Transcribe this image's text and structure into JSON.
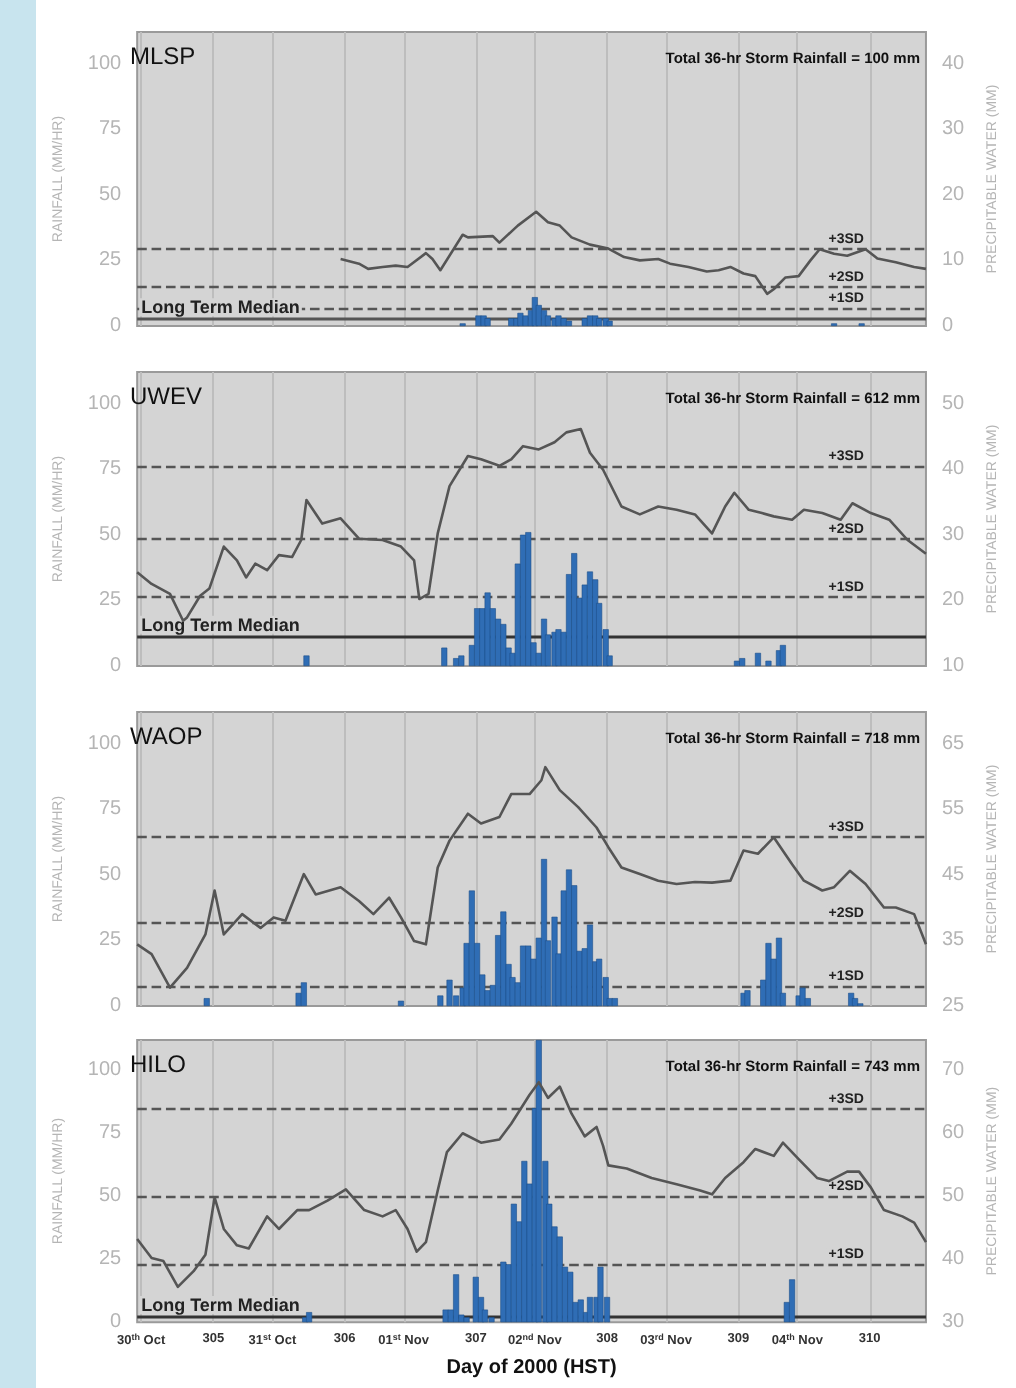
{
  "chart_data": [
    {
      "type": "bar",
      "title": "MLSP",
      "annotations": [
        "Total 36-hr Storm Rainfall = 100 mm"
      ],
      "ylabel": "RAINFALL (MM/HR)",
      "y2label": "PRECIPITABLE WATER (MM)",
      "xlim": [
        304.42,
        310.43
      ],
      "xticks": [
        304.45,
        305,
        305.45,
        306,
        306.45,
        307,
        307.45,
        308,
        308.45,
        309,
        309.45,
        310
      ],
      "ylim": [
        0,
        112
      ],
      "yticks": [
        0,
        25,
        50,
        75,
        100
      ],
      "y2lim": [
        0,
        44.8
      ],
      "y2ticks": [
        0,
        10,
        20,
        30,
        40
      ],
      "grid": "x",
      "tick_labels": "y",
      "series": [
        {
          "color": "#2f6db5",
          "x": [
            306.9,
            307.02,
            307.06,
            307.09,
            307.27,
            307.31,
            307.34,
            307.38,
            307.42,
            307.45,
            307.48,
            307.52,
            307.55,
            307.6,
            307.63,
            307.67,
            307.71,
            307.83,
            307.87,
            307.91,
            307.94,
            307.99,
            308.02,
            309.73,
            309.94
          ],
          "values": [
            1,
            4,
            4,
            3,
            3,
            3,
            5,
            4,
            6,
            11,
            8,
            6,
            4,
            3,
            4,
            3,
            2,
            3,
            4,
            4,
            3,
            3,
            2,
            1,
            1
          ]
        },
        {
          "type": "line",
          "axis": "y2",
          "color": "#555555",
          "x": [
            305.97,
            306.11,
            306.18,
            306.29,
            306.39,
            306.48,
            306.62,
            306.67,
            306.73,
            306.9,
            306.94,
            307.13,
            307.18,
            307.32,
            307.46,
            307.55,
            307.64,
            307.73,
            307.87,
            308.01,
            308.13,
            308.25,
            308.39,
            308.48,
            308.62,
            308.76,
            308.85,
            308.94,
            309.04,
            309.13,
            309.22,
            309.27,
            309.36,
            309.46,
            309.55,
            309.62,
            309.73,
            309.83,
            309.97,
            310.06,
            310.2,
            310.34,
            310.43
          ],
          "values": [
            10.2,
            9.5,
            8.7,
            9.0,
            9.2,
            9.0,
            11.1,
            10.2,
            8.5,
            13.9,
            13.5,
            13.7,
            12.7,
            15.3,
            17.4,
            15.8,
            15.3,
            13.5,
            12.4,
            11.8,
            10.5,
            10.0,
            10.2,
            9.5,
            9.0,
            8.3,
            8.5,
            9.0,
            8.0,
            7.6,
            4.9,
            5.6,
            7.4,
            7.6,
            10.0,
            11.7,
            11.0,
            10.7,
            11.7,
            10.3,
            9.7,
            9.0,
            8.7
          ]
        }
      ],
      "ref_lines": [
        {
          "axis": "y2",
          "value": 11.8,
          "label": "+3SD",
          "color": "#555555",
          "line_style": "dashed"
        },
        {
          "axis": "y2",
          "value": 5.9,
          "label": "+2SD",
          "color": "#555555",
          "line_style": "dashed"
        },
        {
          "axis": "y2",
          "value": 2.8,
          "label": "+1SD",
          "color": "#555555",
          "line_style": "dashed"
        },
        {
          "axis": "y2",
          "value": 1.2,
          "label": "Long Term Median",
          "color": "#555555",
          "line_style": "solid"
        }
      ]
    },
    {
      "type": "bar",
      "title": "UWEV",
      "annotations": [
        "Total 36-hr Storm Rainfall = 612 mm"
      ],
      "ylabel": "RAINFALL (MM/HR)",
      "y2label": "PRECIPITABLE WATER (MM)",
      "xlim": [
        304.42,
        310.43
      ],
      "xticks": [
        304.45,
        305,
        305.45,
        306,
        306.45,
        307,
        307.45,
        308,
        308.45,
        309,
        309.45,
        310
      ],
      "ylim": [
        0,
        112
      ],
      "yticks": [
        0,
        25,
        50,
        75,
        100
      ],
      "y2lim": [
        10,
        54.8
      ],
      "y2ticks": [
        10,
        20,
        30,
        40,
        50
      ],
      "grid": "x",
      "tick_labels": "y",
      "series": [
        {
          "color": "#2f6db5",
          "x": [
            305.71,
            306.76,
            306.85,
            306.89,
            306.97,
            307.01,
            307.05,
            307.09,
            307.13,
            307.17,
            307.21,
            307.25,
            307.28,
            307.32,
            307.36,
            307.4,
            307.44,
            307.48,
            307.52,
            307.55,
            307.6,
            307.63,
            307.67,
            307.71,
            307.75,
            307.79,
            307.83,
            307.87,
            307.91,
            307.94,
            307.99,
            308.02,
            308.99,
            309.03,
            309.15,
            309.23,
            309.31,
            309.34
          ],
          "values": [
            4,
            7,
            3,
            4,
            8,
            22,
            22,
            28,
            22,
            18,
            16,
            7,
            5,
            39,
            50,
            51,
            9,
            5,
            18,
            12,
            13,
            14,
            13,
            35,
            43,
            26,
            31,
            36,
            33,
            24,
            14,
            4,
            2,
            3,
            5,
            2,
            6,
            8
          ]
        },
        {
          "type": "line",
          "axis": "y2",
          "color": "#555555",
          "x": [
            304.42,
            304.53,
            304.67,
            304.77,
            304.8,
            304.9,
            304.97,
            305.08,
            305.18,
            305.25,
            305.32,
            305.41,
            305.5,
            305.6,
            305.67,
            305.71,
            305.83,
            305.97,
            306.11,
            306.29,
            306.43,
            306.53,
            306.57,
            306.64,
            306.71,
            306.8,
            306.94,
            307.04,
            307.18,
            307.27,
            307.36,
            307.48,
            307.6,
            307.69,
            307.8,
            307.87,
            307.97,
            308.11,
            308.25,
            308.39,
            308.53,
            308.67,
            308.8,
            308.9,
            308.97,
            309.08,
            309.18,
            309.27,
            309.41,
            309.5,
            309.64,
            309.78,
            309.87,
            310.01,
            310.15,
            310.29,
            310.43
          ],
          "values": [
            24.3,
            22.5,
            21.0,
            16.9,
            17.4,
            20.7,
            21.8,
            28.2,
            26.1,
            23.5,
            25.6,
            24.6,
            26.9,
            26.6,
            29.2,
            35.3,
            31.7,
            32.5,
            29.4,
            29.2,
            28.2,
            26.1,
            20.2,
            21.0,
            30.2,
            37.4,
            42.0,
            41.5,
            40.5,
            41.5,
            43.5,
            43.0,
            44.1,
            45.6,
            46.1,
            42.5,
            39.9,
            34.3,
            33.1,
            34.3,
            33.8,
            33.1,
            30.2,
            34.3,
            36.4,
            33.8,
            33.3,
            32.8,
            32.3,
            33.8,
            33.3,
            32.3,
            34.8,
            33.3,
            32.3,
            29.2,
            27.1
          ]
        }
      ],
      "ref_lines": [
        {
          "axis": "y2",
          "value": 40.5,
          "label": "+3SD",
          "color": "#555555",
          "line_style": "dashed"
        },
        {
          "axis": "y2",
          "value": 29.4,
          "label": "+2SD",
          "color": "#555555",
          "line_style": "dashed"
        },
        {
          "axis": "y2",
          "value": 20.5,
          "label": "+1SD",
          "color": "#555555",
          "line_style": "dashed"
        },
        {
          "axis": "y2",
          "value": 14.6,
          "label": "Long Term Median",
          "color": "#333333",
          "line_style": "solid"
        }
      ]
    },
    {
      "type": "bar",
      "title": "WAOP",
      "annotations": [
        "Total 36-hr Storm Rainfall = 718 mm"
      ],
      "ylabel": "RAINFALL (MM/HR)",
      "y2label": "PRECIPITABLE WATER (MM)",
      "xlim": [
        304.42,
        310.43
      ],
      "xticks": [
        304.45,
        305,
        305.45,
        306,
        306.45,
        307,
        307.45,
        308,
        308.45,
        309,
        309.45,
        310
      ],
      "ylim": [
        0,
        112
      ],
      "yticks": [
        0,
        25,
        50,
        75,
        100
      ],
      "y2lim": [
        25,
        69.8
      ],
      "y2ticks": [
        25,
        35,
        45,
        55,
        65
      ],
      "grid": "x",
      "tick_labels": "y",
      "series": [
        {
          "color": "#2f6db5",
          "x": [
            304.95,
            305.65,
            305.69,
            306.43,
            306.73,
            306.8,
            306.85,
            306.9,
            306.93,
            306.97,
            307.01,
            307.05,
            307.09,
            307.13,
            307.17,
            307.21,
            307.25,
            307.28,
            307.32,
            307.36,
            307.4,
            307.44,
            307.48,
            307.52,
            307.55,
            307.6,
            307.63,
            307.67,
            307.71,
            307.75,
            307.79,
            307.83,
            307.87,
            307.91,
            307.94,
            307.99,
            308.02,
            308.06,
            309.04,
            309.07,
            309.19,
            309.23,
            309.27,
            309.31,
            309.34,
            309.46,
            309.49,
            309.53,
            309.86,
            309.89,
            309.93
          ],
          "values": [
            3,
            5,
            9,
            2,
            4,
            10,
            4,
            7,
            24,
            44,
            24,
            12,
            6,
            8,
            27,
            36,
            16,
            11,
            9,
            23,
            23,
            18,
            26,
            56,
            25,
            34,
            20,
            44,
            52,
            46,
            21,
            22,
            31,
            17,
            18,
            11,
            3,
            3,
            5,
            6,
            10,
            24,
            18,
            26,
            5,
            4,
            7,
            3,
            5,
            3,
            1
          ]
        },
        {
          "type": "line",
          "axis": "y2",
          "color": "#555555",
          "x": [
            304.42,
            304.53,
            304.67,
            304.8,
            304.94,
            305.01,
            305.08,
            305.22,
            305.36,
            305.46,
            305.55,
            305.69,
            305.78,
            305.97,
            306.11,
            306.22,
            306.34,
            306.43,
            306.53,
            306.62,
            306.71,
            306.8,
            306.94,
            307.04,
            307.18,
            307.27,
            307.41,
            307.5,
            307.53,
            307.64,
            307.78,
            307.92,
            308.01,
            308.11,
            308.25,
            308.39,
            308.53,
            308.67,
            308.8,
            308.94,
            309.04,
            309.15,
            309.27,
            309.41,
            309.5,
            309.64,
            309.73,
            309.85,
            309.97,
            310.11,
            310.2,
            310.34,
            310.43
          ],
          "values": [
            34.4,
            32.9,
            27.8,
            30.8,
            35.9,
            42.6,
            35.9,
            39.0,
            36.9,
            38.5,
            38.0,
            45.1,
            42.0,
            43.1,
            41.0,
            39.0,
            41.5,
            38.5,
            34.9,
            34.4,
            46.1,
            50.2,
            54.3,
            52.8,
            53.8,
            57.3,
            57.3,
            59.4,
            61.4,
            57.9,
            55.3,
            52.2,
            49.2,
            46.1,
            45.1,
            44.1,
            43.6,
            43.9,
            43.8,
            44.1,
            48.7,
            48.2,
            50.7,
            46.6,
            44.1,
            42.6,
            43.1,
            45.6,
            43.6,
            40.0,
            40.0,
            39.0,
            34.4
          ]
        }
      ],
      "ref_lines": [
        {
          "axis": "y2",
          "value": 50.7,
          "label": "+3SD",
          "color": "#555555",
          "line_style": "dashed"
        },
        {
          "axis": "y2",
          "value": 37.6,
          "label": "+2SD",
          "color": "#555555",
          "line_style": "dashed"
        },
        {
          "axis": "y2",
          "value": 28,
          "label": "+1SD",
          "color": "#555555",
          "line_style": "dashed"
        }
      ]
    },
    {
      "type": "bar",
      "title": "HILO",
      "annotations": [
        "Total 36-hr Storm Rainfall = 743 mm"
      ],
      "xlabel": "Day of 2000 (HST)",
      "ylabel": "RAINFALL (MM/HR)",
      "y2label": "PRECIPITABLE WATER (MM)",
      "xlim": [
        304.42,
        310.43
      ],
      "xticks": [
        {
          "value": 304.45,
          "label": "30$^{th}$ Oct"
        },
        305,
        {
          "value": 305.45,
          "label": "31$^{st}$ Oct"
        },
        306,
        {
          "value": 306.45,
          "label": "01$^{st}$ Nov"
        },
        307,
        {
          "value": 307.45,
          "label": "02$^{nd}$ Nov"
        },
        308,
        {
          "value": 308.45,
          "label": "03$^{rd}$ Nov"
        },
        309,
        {
          "value": 309.45,
          "label": "04$^{th}$ Nov"
        },
        310
      ],
      "ylim": [
        0,
        112
      ],
      "yticks": [
        0,
        25,
        50,
        75,
        100
      ],
      "y2lim": [
        30,
        74.8
      ],
      "y2ticks": [
        30,
        40,
        50,
        60,
        70
      ],
      "grid": "x",
      "series": [
        {
          "color": "#2f6db5",
          "x": [
            305.7,
            305.73,
            306.77,
            306.81,
            306.85,
            306.89,
            306.93,
            307.0,
            307.04,
            307.07,
            307.12,
            307.21,
            307.25,
            307.29,
            307.33,
            307.37,
            307.41,
            307.45,
            307.48,
            307.53,
            307.56,
            307.6,
            307.64,
            307.68,
            307.72,
            307.76,
            307.8,
            307.84,
            307.87,
            307.92,
            307.95,
            308.0,
            309.37,
            309.41
          ],
          "values": [
            2,
            4,
            5,
            5,
            19,
            3,
            2,
            18,
            10,
            5,
            2,
            24,
            23,
            47,
            40,
            64,
            55,
            85,
            112,
            64,
            47,
            38,
            34,
            22,
            20,
            8,
            9,
            4,
            10,
            10,
            22,
            10,
            8,
            17
          ]
        },
        {
          "type": "line",
          "axis": "y2",
          "color": "#555555",
          "x": [
            304.42,
            304.53,
            304.62,
            304.73,
            304.85,
            304.94,
            305.01,
            305.08,
            305.18,
            305.27,
            305.41,
            305.5,
            305.64,
            305.73,
            305.87,
            306.01,
            306.15,
            306.29,
            306.39,
            306.48,
            306.55,
            306.62,
            306.71,
            306.78,
            306.9,
            307.04,
            307.18,
            307.27,
            307.41,
            307.48,
            307.55,
            307.64,
            307.73,
            307.83,
            307.92,
            307.97,
            308.01,
            308.15,
            308.34,
            308.53,
            308.71,
            308.8,
            308.9,
            309.04,
            309.13,
            309.27,
            309.34,
            309.46,
            309.6,
            309.69,
            309.83,
            309.92,
            310.01,
            310.11,
            310.25,
            310.34,
            310.43
          ],
          "values": [
            43.2,
            40.2,
            39.7,
            35.6,
            38.1,
            40.7,
            49.8,
            44.8,
            42.2,
            41.7,
            46.8,
            44.8,
            47.8,
            47.8,
            49.3,
            51.1,
            47.8,
            46.8,
            47.8,
            44.8,
            41.2,
            42.7,
            50.9,
            57.0,
            60.0,
            58.5,
            59.0,
            61.5,
            66.1,
            68.1,
            65.6,
            67.4,
            63.1,
            59.5,
            61.0,
            58.0,
            54.9,
            54.4,
            52.9,
            51.9,
            50.9,
            50.3,
            52.9,
            55.4,
            57.5,
            56.4,
            58.5,
            55.9,
            52.9,
            52.4,
            53.9,
            53.9,
            51.4,
            47.8,
            46.8,
            45.8,
            42.7
          ]
        }
      ],
      "ref_lines": [
        {
          "axis": "y2",
          "value": 63.9,
          "label": "+3SD",
          "color": "#555555",
          "line_style": "dashed"
        },
        {
          "axis": "y2",
          "value": 50,
          "label": "+2SD",
          "color": "#555555",
          "line_style": "dashed"
        },
        {
          "axis": "y2",
          "value": 39.2,
          "label": "+1SD",
          "color": "#555555",
          "line_style": "dashed"
        },
        {
          "axis": "y2",
          "value": 31,
          "label": "Long Term Median",
          "color": "#333333",
          "line_style": "solid"
        }
      ]
    }
  ]
}
